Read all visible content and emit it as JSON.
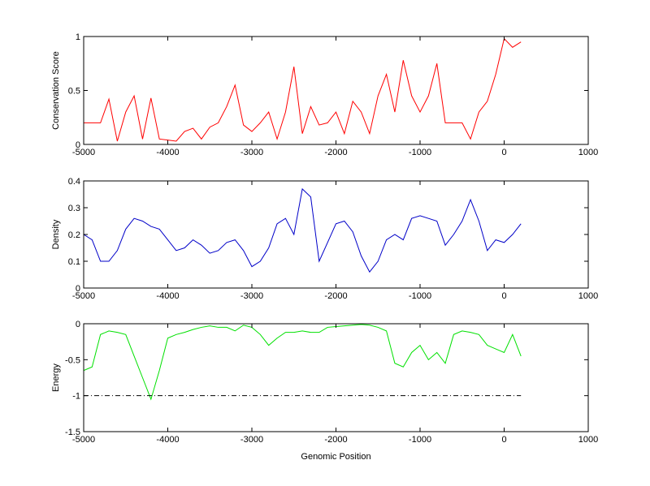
{
  "chart_data": [
    {
      "type": "line",
      "ylabel": "Conservation Score",
      "color": "#ff0000",
      "x": [
        -5000,
        -4900,
        -4800,
        -4700,
        -4600,
        -4500,
        -4400,
        -4300,
        -4200,
        -4100,
        -4000,
        -3900,
        -3800,
        -3700,
        -3600,
        -3500,
        -3400,
        -3300,
        -3200,
        -3100,
        -3000,
        -2900,
        -2800,
        -2700,
        -2600,
        -2500,
        -2400,
        -2300,
        -2200,
        -2100,
        -2000,
        -1900,
        -1800,
        -1700,
        -1600,
        -1500,
        -1400,
        -1300,
        -1200,
        -1100,
        -1000,
        -900,
        -800,
        -700,
        -600,
        -500,
        -400,
        -300,
        -200,
        -100,
        0,
        100,
        200
      ],
      "values": [
        0.2,
        0.2,
        0.2,
        0.42,
        0.03,
        0.3,
        0.45,
        0.05,
        0.43,
        0.05,
        0.04,
        0.03,
        0.12,
        0.15,
        0.05,
        0.16,
        0.2,
        0.35,
        0.55,
        0.18,
        0.12,
        0.2,
        0.3,
        0.05,
        0.3,
        0.72,
        0.1,
        0.35,
        0.18,
        0.2,
        0.3,
        0.1,
        0.4,
        0.3,
        0.1,
        0.45,
        0.65,
        0.3,
        0.78,
        0.45,
        0.3,
        0.45,
        0.75,
        0.2,
        0.2,
        0.2,
        0.05,
        0.3,
        0.4,
        0.65,
        0.98,
        0.9,
        0.95
      ],
      "xlim": [
        -5000,
        1000
      ],
      "xticks": [
        -5000,
        -4000,
        -3000,
        -2000,
        -1000,
        0,
        1000
      ],
      "ylim": [
        0,
        1
      ],
      "yticks": [
        0,
        0.5,
        1
      ]
    },
    {
      "type": "line",
      "ylabel": "Density",
      "color": "#0000c8",
      "x": [
        -5000,
        -4900,
        -4800,
        -4700,
        -4600,
        -4500,
        -4400,
        -4300,
        -4200,
        -4100,
        -4000,
        -3900,
        -3800,
        -3700,
        -3600,
        -3500,
        -3400,
        -3300,
        -3200,
        -3100,
        -3000,
        -2900,
        -2800,
        -2700,
        -2600,
        -2500,
        -2400,
        -2300,
        -2200,
        -2100,
        -2000,
        -1900,
        -1800,
        -1700,
        -1600,
        -1500,
        -1400,
        -1300,
        -1200,
        -1100,
        -1000,
        -900,
        -800,
        -700,
        -600,
        -500,
        -400,
        -300,
        -200,
        -100,
        0,
        100,
        200
      ],
      "values": [
        0.2,
        0.18,
        0.1,
        0.1,
        0.14,
        0.22,
        0.26,
        0.25,
        0.23,
        0.22,
        0.18,
        0.14,
        0.15,
        0.18,
        0.16,
        0.13,
        0.14,
        0.17,
        0.18,
        0.14,
        0.08,
        0.1,
        0.15,
        0.24,
        0.26,
        0.2,
        0.37,
        0.34,
        0.1,
        0.17,
        0.24,
        0.25,
        0.21,
        0.12,
        0.06,
        0.1,
        0.18,
        0.2,
        0.18,
        0.26,
        0.27,
        0.26,
        0.25,
        0.16,
        0.2,
        0.25,
        0.33,
        0.25,
        0.14,
        0.18,
        0.17,
        0.2,
        0.24
      ],
      "xlim": [
        -5000,
        1000
      ],
      "xticks": [
        -5000,
        -4000,
        -3000,
        -2000,
        -1000,
        0,
        1000
      ],
      "ylim": [
        0,
        0.4
      ],
      "yticks": [
        0,
        0.1,
        0.2,
        0.3,
        0.4
      ]
    },
    {
      "type": "line",
      "ylabel": "Energy",
      "xlabel": "Genomic Position",
      "color": "#00e000",
      "x": [
        -5000,
        -4900,
        -4800,
        -4700,
        -4600,
        -4500,
        -4400,
        -4300,
        -4200,
        -4100,
        -4000,
        -3900,
        -3800,
        -3700,
        -3600,
        -3500,
        -3400,
        -3300,
        -3200,
        -3100,
        -3000,
        -2900,
        -2800,
        -2700,
        -2600,
        -2500,
        -2400,
        -2300,
        -2200,
        -2100,
        -2000,
        -1900,
        -1800,
        -1700,
        -1600,
        -1500,
        -1400,
        -1300,
        -1200,
        -1100,
        -1000,
        -900,
        -800,
        -700,
        -600,
        -500,
        -400,
        -300,
        -200,
        -100,
        0,
        100,
        200
      ],
      "values": [
        -0.65,
        -0.6,
        -0.15,
        -0.1,
        -0.12,
        -0.15,
        -0.45,
        -0.75,
        -1.05,
        -0.65,
        -0.2,
        -0.15,
        -0.12,
        -0.08,
        -0.05,
        -0.03,
        -0.05,
        -0.05,
        -0.1,
        -0.02,
        -0.05,
        -0.15,
        -0.3,
        -0.2,
        -0.12,
        -0.12,
        -0.1,
        -0.12,
        -0.12,
        -0.05,
        -0.04,
        -0.03,
        -0.02,
        -0.01,
        -0.02,
        -0.05,
        -0.1,
        -0.55,
        -0.6,
        -0.4,
        -0.3,
        -0.5,
        -0.4,
        -0.55,
        -0.15,
        -0.1,
        -0.12,
        -0.15,
        -0.3,
        -0.35,
        -0.4,
        -0.15,
        -0.45
      ],
      "reference_line": {
        "x": [
          -5000,
          200
        ],
        "values": [
          -1,
          -1
        ],
        "color": "#000000",
        "dash": "dash-dot"
      },
      "xlim": [
        -5000,
        1000
      ],
      "xticks": [
        -5000,
        -4000,
        -3000,
        -2000,
        -1000,
        0,
        1000
      ],
      "ylim": [
        -1.5,
        0
      ],
      "yticks": [
        -1.5,
        -1,
        -0.5,
        0
      ]
    }
  ]
}
